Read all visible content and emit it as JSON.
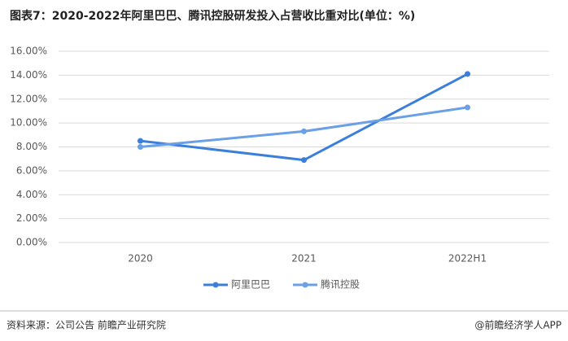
{
  "chart_data": {
    "type": "line",
    "title": "图表7：2020-2022年阿里巴巴、腾讯控股研发投入占营收比重对比(单位：%)",
    "categories": [
      "2020",
      "2021",
      "2022H1"
    ],
    "series": [
      {
        "name": "阿里巴巴",
        "color": "#3b7fdb",
        "values": [
          8.5,
          6.9,
          14.1
        ]
      },
      {
        "name": "腾讯控股",
        "color": "#6b9fe6",
        "values": [
          8.0,
          9.3,
          11.3
        ]
      }
    ],
    "ylim": [
      0,
      16
    ],
    "yticks": [
      {
        "value": 0,
        "label": "0.00%"
      },
      {
        "value": 2,
        "label": "2.00%"
      },
      {
        "value": 4,
        "label": "4.00%"
      },
      {
        "value": 6,
        "label": "6.00%"
      },
      {
        "value": 8,
        "label": "8.00%"
      },
      {
        "value": 10,
        "label": "10.00%"
      },
      {
        "value": 12,
        "label": "12.00%"
      },
      {
        "value": 14,
        "label": "14.00%"
      },
      {
        "value": 16,
        "label": "16.00%"
      }
    ],
    "grid": true,
    "legend": "bottom",
    "source": "资料来源：公司公告 前瞻产业研究院",
    "credit": "@前瞻经济学人APP"
  }
}
